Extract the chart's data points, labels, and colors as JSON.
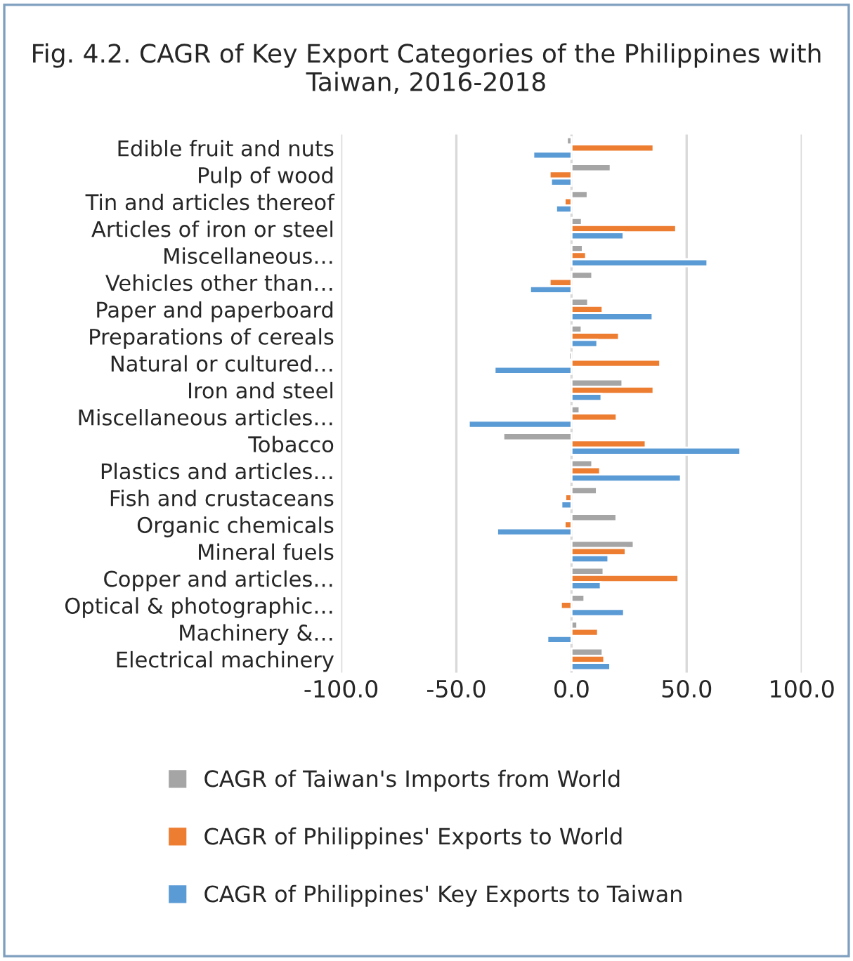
{
  "chart_data": {
    "type": "bar",
    "orientation": "horizontal",
    "title": "Fig. 4.2. CAGR of Key Export Categories of the Philippines with Taiwan, 2016-2018",
    "categories": [
      "Edible fruit and nuts",
      "Pulp of wood",
      "Tin and articles thereof",
      "Articles of iron or steel",
      "Miscellaneous…",
      "Vehicles other than…",
      "Paper and paperboard",
      "Preparations of cereals",
      "Natural or cultured…",
      "Iron and steel",
      "Miscellaneous articles…",
      "Tobacco",
      "Plastics and articles…",
      "Fish and crustaceans",
      "Organic chemicals",
      "Mineral fuels",
      "Copper and articles…",
      "Optical & photographic…",
      "Machinery &…",
      "Electrical machinery"
    ],
    "series": [
      {
        "name": "CAGR of Taiwan's Imports from World",
        "color": "#a5a5a5",
        "values": [
          -2,
          17,
          7,
          4.5,
          4.9,
          9,
          7.2,
          4.4,
          -1.1,
          22.1,
          3.5,
          -29.6,
          9,
          11,
          19.5,
          27,
          13.9,
          5.6,
          2.5,
          13.5
        ]
      },
      {
        "name": "CAGR of Philippines' Exports to World",
        "color": "#ed7d31",
        "values": [
          35.6,
          -9.5,
          -3,
          45.4,
          6.3,
          -9.5,
          13.5,
          20.6,
          38.5,
          35.6,
          19.6,
          32.2,
          12.4,
          -2.7,
          -3,
          23.5,
          46.4,
          -4.6,
          11.5,
          14.2
        ]
      },
      {
        "name": "CAGR of Philippines' Key Exports to Taiwan",
        "color": "#5b9bd5",
        "values": [
          -16.6,
          -8.9,
          -6.7,
          22.6,
          59,
          -18,
          35.2,
          11.2,
          -33.4,
          13,
          -44.6,
          73.3,
          47.5,
          -4.4,
          -32.3,
          16,
          12.7,
          22.8,
          -10.5,
          16.8
        ]
      }
    ],
    "xlim": [
      -100,
      100
    ],
    "xticks": [
      {
        "value": -100,
        "label": "-100.0"
      },
      {
        "value": -50,
        "label": "-50.0"
      },
      {
        "value": 0,
        "label": "0.0"
      },
      {
        "value": 50,
        "label": "50.0"
      },
      {
        "value": 100,
        "label": "100.0"
      }
    ],
    "grid": "x",
    "legend": "bottom"
  }
}
